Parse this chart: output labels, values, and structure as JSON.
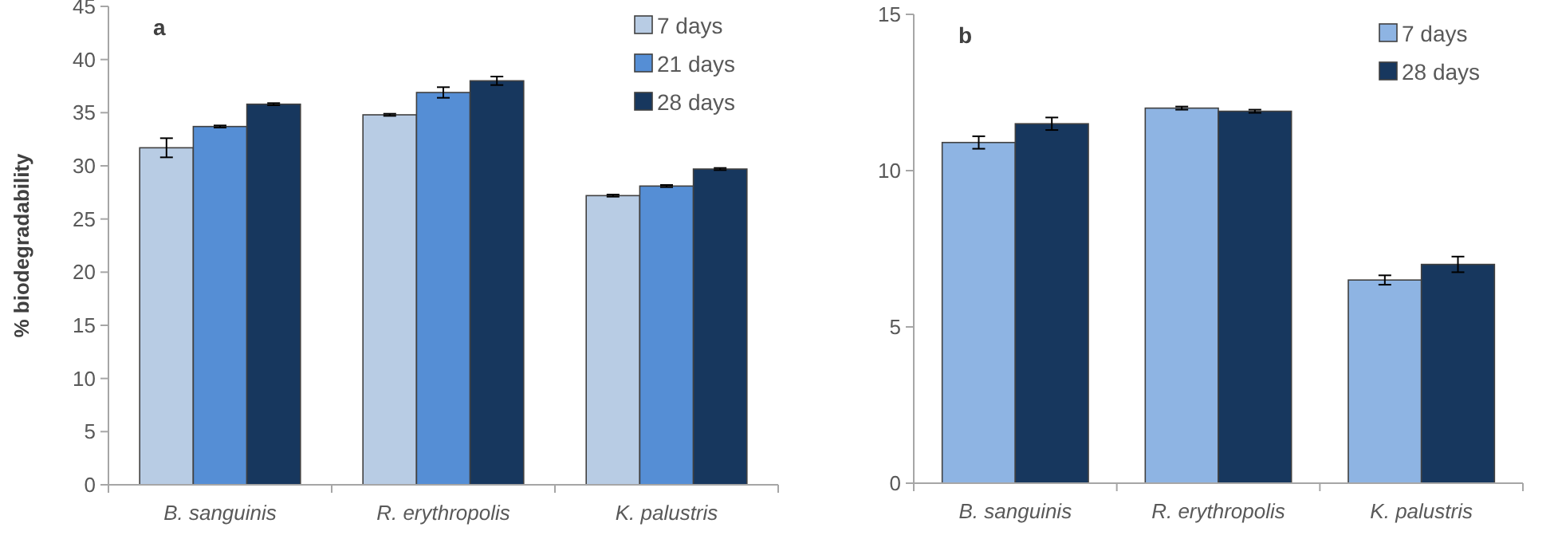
{
  "chart_data": [
    {
      "type": "bar",
      "title": "a",
      "ylabel": "% biodegradability",
      "categories": [
        "B. sanguinis",
        "R. erythropolis",
        "K. palustris"
      ],
      "ylim": [
        0,
        45
      ],
      "yticks": [
        0,
        5,
        10,
        15,
        20,
        25,
        30,
        35,
        40,
        45
      ],
      "grid": false,
      "legend": "top right",
      "series": [
        {
          "name": "7 days",
          "color": "#b8cce4",
          "values": [
            31.7,
            34.8,
            27.2
          ],
          "errors": [
            0.9,
            0.1,
            0.1
          ]
        },
        {
          "name": "21 days",
          "color": "#558ed5",
          "values": [
            33.7,
            36.9,
            28.1
          ],
          "errors": [
            0.1,
            0.5,
            0.1
          ]
        },
        {
          "name": "28 days",
          "color": "#17375e",
          "values": [
            35.8,
            38.0,
            29.7
          ],
          "errors": [
            0.1,
            0.4,
            0.1
          ]
        }
      ]
    },
    {
      "type": "bar",
      "title": "b",
      "categories": [
        "B. sanguinis",
        "R. erythropolis",
        "K. palustris"
      ],
      "ylim": [
        0,
        15
      ],
      "yticks": [
        0,
        5,
        10,
        15
      ],
      "grid": false,
      "legend": "top right",
      "series": [
        {
          "name": "7 days",
          "color": "#8eb4e3",
          "values": [
            10.9,
            12.0,
            6.5
          ],
          "errors": [
            0.2,
            0.05,
            0.15
          ]
        },
        {
          "name": "28 days",
          "color": "#17375e",
          "values": [
            11.5,
            11.9,
            7.0
          ],
          "errors": [
            0.2,
            0.05,
            0.25
          ]
        }
      ]
    }
  ]
}
